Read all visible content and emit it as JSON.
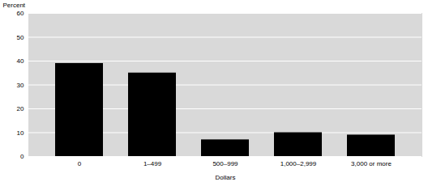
{
  "chart_data": {
    "type": "bar",
    "categories": [
      "0",
      "1–499",
      "500–999",
      "1,000–2,999",
      "3,000 or more"
    ],
    "values": [
      39,
      35,
      7,
      10,
      9
    ],
    "color": "#000000",
    "xlabel": "Dollars",
    "ylabel": "Percent",
    "ylim": [
      0,
      60
    ],
    "yticks": [
      0,
      10,
      20,
      30,
      40,
      50,
      60
    ],
    "grid": true
  }
}
